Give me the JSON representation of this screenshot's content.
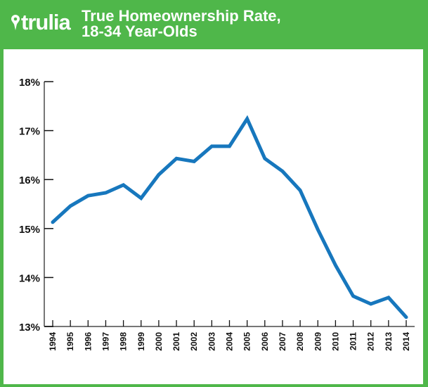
{
  "brand": {
    "logo_text": "trulia",
    "color": "#4fb74a"
  },
  "header": {
    "title_line1": "True Homeownership Rate,",
    "title_line2": "18-34 Year-Olds"
  },
  "chart_data": {
    "type": "line",
    "title": "True Homeownership Rate, 18-34 Year-Olds",
    "xlabel": "",
    "ylabel": "",
    "x": [
      "1994",
      "1995",
      "1996",
      "1997",
      "1998",
      "1999",
      "2000",
      "2001",
      "2002",
      "2003",
      "2004",
      "2005",
      "2006",
      "2007",
      "2008",
      "2009",
      "2010",
      "2011",
      "2012",
      "2013",
      "2014"
    ],
    "series": [
      {
        "values": [
          15.13,
          15.46,
          15.67,
          15.73,
          15.89,
          15.62,
          16.1,
          16.43,
          16.37,
          16.68,
          16.68,
          17.24,
          16.43,
          16.17,
          15.78,
          14.98,
          14.25,
          13.62,
          13.46,
          13.59,
          13.19
        ],
        "color": "#1777bd"
      }
    ],
    "ylim": [
      13,
      18
    ],
    "yticks": [
      13,
      14,
      15,
      16,
      17,
      18
    ],
    "ytick_labels": [
      "13%",
      "14%",
      "15%",
      "16%",
      "17%",
      "18%"
    ],
    "grid": false,
    "legend": "none"
  }
}
